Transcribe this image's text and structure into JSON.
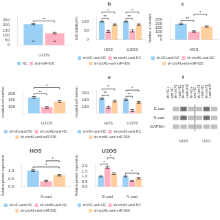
{
  "chart_data": [
    {
      "type": "bar",
      "categories": [
        "U2OS"
      ],
      "series": [
        {
          "name": "NC",
          "values": [
            210
          ],
          "errors": [
            5
          ]
        },
        {
          "name": "anti-miR-936",
          "values": [
            120
          ],
          "errors": [
            8
          ]
        }
      ],
      "ylim": [
        0,
        280
      ],
      "yticks": [
        0,
        50,
        100,
        150,
        200,
        250
      ],
      "grid": false,
      "legend": "bottom",
      "annotations": [
        {
          "text": "**",
          "category": "U2OS",
          "from": "NC",
          "to": "anti-miR-936"
        },
        {
          "text": "**",
          "category": "U2OS",
          "series": "NC"
        },
        {
          "text": "**",
          "category": "U2OS",
          "series": "anti-miR-936"
        }
      ]
    },
    {
      "type": "bar",
      "title": "b",
      "ylabel": "Cell viability(%)",
      "categories": [
        "HOS",
        "U2OS"
      ],
      "series": [
        {
          "name": "sh-NC+anti-NC",
          "values": [
            100,
            100
          ],
          "errors": [
            3,
            3
          ]
        },
        {
          "name": "sh-circ#1+anti-NC",
          "values": [
            45,
            48
          ],
          "errors": [
            6,
            6
          ]
        },
        {
          "name": "sh-circ#1+anti-miR-936",
          "values": [
            82,
            82
          ],
          "errors": [
            4,
            4
          ]
        }
      ],
      "ylim": [
        0,
        125
      ],
      "yticks": [
        0,
        50,
        100
      ],
      "grid": false,
      "legend": "bottom",
      "annotations": [
        {
          "text": "**",
          "category": "HOS",
          "from": "sh-NC+anti-NC",
          "to": "sh-circ#1+anti-NC"
        },
        {
          "text": "*",
          "category": "HOS",
          "from": "sh-NC+anti-NC",
          "to": "sh-circ#1+anti-miR-936"
        },
        {
          "text": "**",
          "category": "U2OS",
          "from": "sh-NC+anti-NC",
          "to": "sh-circ#1+anti-NC"
        },
        {
          "text": "*",
          "category": "U2OS",
          "from": "sh-NC+anti-NC",
          "to": "sh-circ#1+anti-miR-936"
        }
      ]
    },
    {
      "type": "bar",
      "title": "c",
      "ylabel": "Number of colonies",
      "categories": [
        "HOS"
      ],
      "series": [
        {
          "name": "sh-NC+anti-NC",
          "values": [
            195
          ],
          "errors": [
            8
          ]
        },
        {
          "name": "sh-circ#1+anti-NC",
          "values": [
            100
          ],
          "errors": [
            9
          ]
        },
        {
          "name": "sh-circ#1+anti-miR-936",
          "values": [
            162
          ],
          "errors": [
            7
          ]
        }
      ],
      "ylim": [
        0,
        280
      ],
      "yticks": [
        0,
        50,
        100,
        150,
        200,
        250
      ],
      "grid": false,
      "legend": "bottom",
      "annotations": [
        {
          "text": "**",
          "category": "HOS",
          "from": "sh-NC+anti-NC",
          "to": "sh-circ#1+anti-NC"
        },
        {
          "text": "*",
          "category": "HOS",
          "from": "sh-circ#1+anti-NC",
          "to": "sh-circ#1+anti-miR-936"
        }
      ]
    },
    {
      "type": "bar",
      "ylabel": "Invaded cell number",
      "categories": [
        "U2OS"
      ],
      "series": [
        {
          "name": "sh-NC+anti-NC",
          "values": [
            170
          ],
          "errors": [
            6
          ]
        },
        {
          "name": "sh-circ#1+anti-NC",
          "values": [
            95
          ],
          "errors": [
            8
          ]
        },
        {
          "name": "sh-circ#1+anti-miR-936",
          "values": [
            138
          ],
          "errors": [
            7
          ]
        }
      ],
      "ylim": [
        50,
        220
      ],
      "yticks": [
        100,
        150,
        200
      ],
      "grid": false,
      "legend": "bottom",
      "annotations": [
        {
          "text": "**",
          "category": "U2OS",
          "from": "sh-NC+anti-NC",
          "to": "sh-circ#1+anti-NC"
        },
        {
          "text": "*",
          "category": "U2OS",
          "from": "sh-NC+anti-NC",
          "to": "sh-circ#1+anti-miR-936"
        }
      ]
    },
    {
      "type": "bar",
      "title": "e",
      "ylabel": "Invaded cell number",
      "categories": [
        "HOS",
        "U2OS"
      ],
      "series": [
        {
          "name": "sh-NC+anti-NC",
          "values": [
            160,
            150
          ],
          "errors": [
            5,
            6
          ]
        },
        {
          "name": "sh-circ#1+anti-NC",
          "values": [
            95,
            70
          ],
          "errors": [
            8,
            7
          ]
        },
        {
          "name": "sh-circ#1+anti-miR-936",
          "values": [
            140,
            132
          ],
          "errors": [
            6,
            7
          ]
        }
      ],
      "ylim": [
        50,
        220
      ],
      "yticks": [
        100,
        150,
        200
      ],
      "grid": false,
      "legend": "bottom",
      "annotations": [
        {
          "text": "**",
          "category": "HOS",
          "from": "sh-NC+anti-NC",
          "to": "sh-circ#1+anti-NC"
        },
        {
          "text": "*",
          "category": "HOS",
          "from": "sh-NC+anti-NC",
          "to": "sh-circ#1+anti-miR-936"
        },
        {
          "text": "**",
          "category": "U2OS",
          "from": "sh-NC+anti-NC",
          "to": "sh-circ#1+anti-NC"
        },
        {
          "text": "*",
          "category": "U2OS",
          "from": "sh-NC+anti-NC",
          "to": "sh-circ#1+anti-miR-936"
        }
      ]
    },
    {
      "type": "heatmap",
      "title": "f",
      "x": [
        "sh-NC+\nanti-NC",
        "sh-circ#1\n+anti-NC",
        "sh-circ#1\n+anti-miR",
        "sh-NC+\nanti-NC",
        "sh-circ#1\n+anti-NC",
        "sh-circ#1\n+anti-miR"
      ],
      "y": [
        "E-cad",
        "N-cad",
        "GAPDH"
      ],
      "cells": [
        [
          0.25,
          0.55,
          0.25,
          0.25,
          0.55,
          0.25
        ],
        [
          0.25,
          0.55,
          0.25,
          0.25,
          0.55,
          0.25
        ],
        [
          0.25,
          0.25,
          0.25,
          0.25,
          0.25,
          0.25
        ]
      ],
      "groups": [
        "HOS",
        "U2O"
      ]
    },
    {
      "type": "bar",
      "title": "HOS",
      "ylabel": "Relative protein expression",
      "categories": [
        "N-cad"
      ],
      "series": [
        {
          "name": "sh-NC+anti-NC",
          "values": [
            1.0
          ],
          "errors": [
            0.05
          ]
        },
        {
          "name": "sh-circ#1+anti-NC",
          "values": [
            0.35
          ],
          "errors": [
            0.05
          ]
        },
        {
          "name": "sh-circ#1+anti-miR-936",
          "values": [
            0.72
          ],
          "errors": [
            0.05
          ]
        }
      ],
      "ylim": [
        0,
        1.4
      ],
      "yticks": [
        {
          "value": 0,
          "label": "0.0"
        },
        0.5,
        {
          "value": 1,
          "label": "1.0"
        }
      ],
      "grid": false,
      "legend": "bottom",
      "annotations": [
        {
          "text": "*",
          "category": "N-cad",
          "from": "sh-NC+anti-NC",
          "to": "sh-circ#1+anti-miR-936"
        },
        {
          "text": "*",
          "category": "N-cad",
          "from": "sh-circ#1+anti-NC",
          "to": "sh-circ#1+anti-miR-936"
        }
      ]
    },
    {
      "type": "bar",
      "title": "U2OS",
      "ylabel": "Relative protein expression",
      "categories": [
        "E-cad",
        "N-cad"
      ],
      "series": [
        {
          "name": "sh-NC+anti-NC",
          "values": [
            1.0,
            1.0
          ],
          "errors": [
            0.05,
            0.05
          ]
        },
        {
          "name": "sh-circ#1+anti-NC",
          "values": [
            1.85,
            0.55
          ],
          "errors": [
            0.08,
            0.05
          ]
        },
        {
          "name": "sh-circ#1+anti-miR-936",
          "values": [
            1.28,
            0.82
          ],
          "errors": [
            0.07,
            0.06
          ]
        }
      ],
      "ylim": [
        0,
        2.2
      ],
      "yticks": [
        {
          "value": 0,
          "label": "0.0"
        },
        0.5,
        {
          "value": 1,
          "label": "1.0"
        },
        1.5,
        {
          "value": 2,
          "label": "2.0"
        }
      ],
      "grid": false,
      "legend": "bottom",
      "annotations": [
        {
          "text": "*",
          "category": "E-cad",
          "from": "sh-NC+anti-NC",
          "to": "sh-circ#1+anti-NC"
        },
        {
          "text": "*",
          "category": "E-cad",
          "from": "sh-circ#1+anti-NC",
          "to": "sh-circ#1+anti-miR-936"
        },
        {
          "text": "*",
          "category": "N-cad",
          "from": "sh-NC+anti-NC",
          "to": "sh-circ#1+anti-miR-936"
        }
      ]
    }
  ]
}
